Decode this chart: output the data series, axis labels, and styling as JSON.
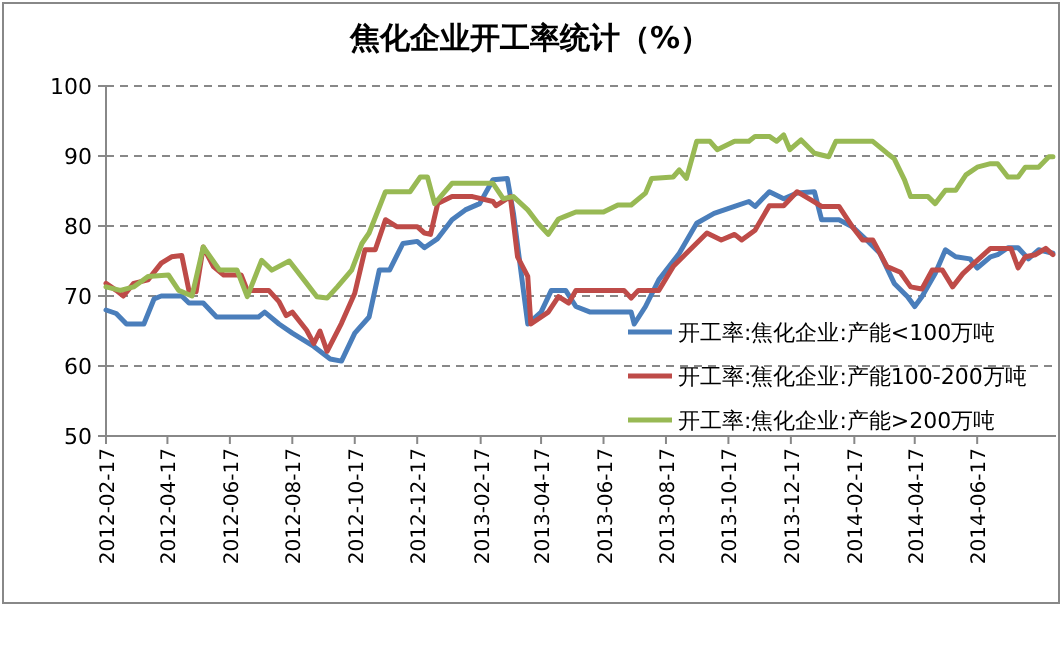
{
  "chart_data": {
    "type": "line",
    "title": "焦化企业开工率统计（%）",
    "xlim": [
      "2012-02-17",
      "2014-09-02"
    ],
    "xticks": [
      "2012-02-17",
      "2012-04-17",
      "2012-06-17",
      "2012-08-17",
      "2012-10-17",
      "2012-12-17",
      "2013-02-17",
      "2013-04-17",
      "2013-06-17",
      "2013-08-17",
      "2013-10-17",
      "2013-12-17",
      "2014-02-17",
      "2014-04-17",
      "2014-06-17"
    ],
    "ylim": [
      50,
      100
    ],
    "yticks": [
      50,
      60,
      70,
      80,
      90,
      100
    ],
    "grid": "y",
    "legend": "bottom right",
    "marker": "none",
    "line_style": "solid",
    "series": [
      {
        "name": "开工率:焦化企业:产能<100万吨",
        "color": "#4a7ebb",
        "x": [
          "2012-02-17",
          "2012-02-27",
          "2012-03-08",
          "2012-03-25",
          "2012-04-04",
          "2012-04-11",
          "2012-05-01",
          "2012-05-08",
          "2012-05-22",
          "2012-06-04",
          "2012-06-24",
          "2012-07-15",
          "2012-07-21",
          "2012-08-04",
          "2012-08-17",
          "2012-09-07",
          "2012-09-23",
          "2012-10-04",
          "2012-10-17",
          "2012-10-31",
          "2012-11-10",
          "2012-11-20",
          "2012-12-03",
          "2012-12-17",
          "2012-12-24",
          "2013-01-06",
          "2013-01-20",
          "2013-02-02",
          "2013-02-16",
          "2013-03-01",
          "2013-03-15",
          "2013-03-21",
          "2013-04-04",
          "2013-04-17",
          "2013-04-27",
          "2013-05-11",
          "2013-05-21",
          "2013-06-04",
          "2013-07-14",
          "2013-07-17",
          "2013-07-28",
          "2013-08-10",
          "2013-08-30",
          "2013-09-16",
          "2013-10-03",
          "2013-10-23",
          "2013-11-06",
          "2013-11-12",
          "2013-11-26",
          "2013-12-10",
          "2013-12-23",
          "2014-01-09",
          "2014-01-16",
          "2014-02-02",
          "2014-02-15",
          "2014-03-01",
          "2014-03-14",
          "2014-03-28",
          "2014-04-10",
          "2014-04-17",
          "2014-04-24",
          "2014-05-07",
          "2014-05-17",
          "2014-05-27",
          "2014-06-10",
          "2014-06-17",
          "2014-06-30",
          "2014-07-07",
          "2014-07-17",
          "2014-07-27",
          "2014-08-06",
          "2014-08-16",
          "2014-08-30"
        ],
        "values": [
          68,
          67.5,
          66,
          66,
          69.6,
          70,
          70,
          69,
          69,
          67,
          67,
          67,
          67.7,
          66,
          64.7,
          62.8,
          61,
          60.7,
          64.7,
          67,
          73.7,
          73.7,
          77.5,
          77.8,
          76.9,
          78.2,
          80.9,
          82.3,
          83.2,
          86.6,
          86.8,
          81.8,
          66,
          67.7,
          70.8,
          70.8,
          68.5,
          67.7,
          67.7,
          66,
          68.5,
          72.3,
          76.1,
          80.4,
          81.8,
          82.8,
          83.5,
          82.8,
          84.9,
          83.9,
          84.7,
          84.9,
          80.9,
          80.9,
          79.9,
          78,
          76.1,
          71.8,
          69.9,
          68.5,
          69.9,
          73.2,
          76.6,
          75.6,
          75.3,
          74,
          75.6,
          75.9,
          76.9,
          76.9,
          75.3,
          76.6,
          76.1
        ]
      },
      {
        "name": "开工率:焦化企业:产能100-200万吨",
        "color": "#be4b48",
        "x": [
          "2012-02-17",
          "2012-02-27",
          "2012-03-05",
          "2012-03-15",
          "2012-03-29",
          "2012-04-11",
          "2012-04-21",
          "2012-05-01",
          "2012-05-08",
          "2012-05-15",
          "2012-05-22",
          "2012-06-01",
          "2012-06-11",
          "2012-06-28",
          "2012-07-04",
          "2012-07-25",
          "2012-08-04",
          "2012-08-11",
          "2012-08-17",
          "2012-08-31",
          "2012-09-07",
          "2012-09-13",
          "2012-09-20",
          "2012-10-04",
          "2012-10-17",
          "2012-10-27",
          "2012-11-06",
          "2012-11-16",
          "2012-11-27",
          "2012-12-17",
          "2012-12-24",
          "2012-12-30",
          "2013-01-06",
          "2013-01-20",
          "2013-02-09",
          "2013-03-01",
          "2013-03-04",
          "2013-03-18",
          "2013-03-25",
          "2013-04-04",
          "2013-04-07",
          "2013-04-24",
          "2013-05-04",
          "2013-05-14",
          "2013-05-21",
          "2013-07-07",
          "2013-07-14",
          "2013-07-21",
          "2013-08-10",
          "2013-08-24",
          "2013-09-06",
          "2013-09-26",
          "2013-10-10",
          "2013-10-23",
          "2013-10-30",
          "2013-11-12",
          "2013-11-26",
          "2013-12-10",
          "2013-12-23",
          "2014-01-06",
          "2014-01-16",
          "2014-02-02",
          "2014-02-15",
          "2014-02-25",
          "2014-03-07",
          "2014-03-21",
          "2014-04-03",
          "2014-04-13",
          "2014-04-24",
          "2014-05-04",
          "2014-05-14",
          "2014-05-24",
          "2014-06-03",
          "2014-06-17",
          "2014-06-30",
          "2014-07-20",
          "2014-07-27",
          "2014-08-03",
          "2014-08-13",
          "2014-08-23",
          "2014-08-30"
        ],
        "values": [
          71.8,
          70.8,
          70,
          71.8,
          72.3,
          74.7,
          75.6,
          75.8,
          70.8,
          70.6,
          77,
          74.2,
          73,
          73,
          70.8,
          70.8,
          69.2,
          67.2,
          67.7,
          65.1,
          63.2,
          65,
          62.1,
          66.1,
          70.4,
          76.6,
          76.6,
          80.9,
          79.9,
          79.9,
          79,
          78.8,
          83.2,
          84.2,
          84.2,
          83.5,
          82.9,
          84.2,
          75.6,
          72.8,
          66,
          67.7,
          69.9,
          69,
          70.8,
          70.8,
          69.7,
          70.8,
          70.8,
          74.2,
          76.1,
          79,
          78,
          78.8,
          78,
          79.4,
          82.9,
          82.9,
          84.9,
          83.7,
          82.8,
          82.8,
          79.9,
          78,
          78,
          74.2,
          73.4,
          71.3,
          71,
          73.7,
          73.7,
          71.3,
          73.2,
          75.1,
          76.8,
          76.8,
          74,
          75.6,
          75.9,
          76.8,
          75.9
        ]
      },
      {
        "name": "开工率:焦化企业:产能>200万吨",
        "color": "#98b954",
        "x": [
          "2012-02-17",
          "2012-03-02",
          "2012-03-15",
          "2012-03-29",
          "2012-04-18",
          "2012-04-28",
          "2012-05-11",
          "2012-05-22",
          "2012-06-07",
          "2012-06-24",
          "2012-07-04",
          "2012-07-18",
          "2012-07-28",
          "2012-08-14",
          "2012-08-31",
          "2012-09-10",
          "2012-09-20",
          "2012-09-30",
          "2012-10-14",
          "2012-10-24",
          "2012-10-31",
          "2012-11-16",
          "2012-12-10",
          "2012-12-20",
          "2012-12-27",
          "2013-01-03",
          "2013-01-20",
          "2013-03-01",
          "2013-03-11",
          "2013-03-21",
          "2013-04-04",
          "2013-04-14",
          "2013-04-24",
          "2013-05-04",
          "2013-05-11",
          "2013-05-21",
          "2013-06-17",
          "2013-07-01",
          "2013-07-14",
          "2013-07-28",
          "2013-08-03",
          "2013-08-24",
          "2013-08-30",
          "2013-09-06",
          "2013-09-16",
          "2013-09-29",
          "2013-10-06",
          "2013-10-23",
          "2013-11-06",
          "2013-11-12",
          "2013-11-26",
          "2013-12-03",
          "2013-12-10",
          "2013-12-16",
          "2013-12-27",
          "2014-01-09",
          "2014-01-23",
          "2014-01-30",
          "2014-03-07",
          "2014-03-21",
          "2014-03-28",
          "2014-04-07",
          "2014-04-13",
          "2014-04-30",
          "2014-05-07",
          "2014-05-17",
          "2014-05-27",
          "2014-06-06",
          "2014-06-17",
          "2014-06-30",
          "2014-07-07",
          "2014-07-17",
          "2014-07-27",
          "2014-08-03",
          "2014-08-16",
          "2014-08-26",
          "2014-08-30"
        ],
        "values": [
          71.3,
          70.8,
          71.3,
          72.8,
          73,
          70.8,
          70,
          77,
          73.7,
          73.7,
          69.9,
          75.1,
          73.7,
          75,
          71.8,
          69.9,
          69.7,
          71.3,
          73.7,
          77.5,
          79,
          84.9,
          84.9,
          87,
          87,
          83.2,
          86.1,
          86.1,
          83.9,
          84.2,
          82.3,
          80.4,
          78.8,
          81,
          81.4,
          82,
          82,
          83,
          83,
          84.7,
          86.8,
          87,
          88,
          86.8,
          92.1,
          92.1,
          90.9,
          92.1,
          92.1,
          92.8,
          92.8,
          92.1,
          93,
          90.9,
          92.3,
          90.4,
          89.9,
          92.1,
          92.1,
          90.4,
          89.6,
          86.6,
          84.2,
          84.2,
          83.2,
          85.1,
          85.1,
          87.3,
          88.4,
          88.9,
          88.9,
          87,
          87,
          88.4,
          88.4,
          89.9,
          89.9
        ]
      }
    ]
  }
}
